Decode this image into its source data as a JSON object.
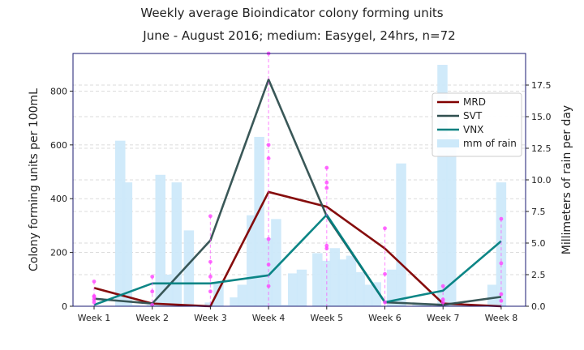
{
  "chart_data": {
    "type": "line",
    "title": "Weekly average Bioindicator colony forming units",
    "subtitle": "June - August 2016; medium: Easygel, 24hrs, n=72",
    "xlabel": "",
    "ylabel": "Colony forming units per 100mL",
    "y2label": "Millimeters of rain per day",
    "categories": [
      "Week 1",
      "Week 2",
      "Week 3",
      "Week 4",
      "Week 5",
      "Week 6",
      "Week 7",
      "Week 8"
    ],
    "ylim": [
      0,
      940
    ],
    "yticks": [
      0,
      200,
      400,
      600,
      800
    ],
    "y2lim": [
      0,
      20
    ],
    "y2ticks": [
      "0.0",
      "2.5",
      "5.0",
      "7.5",
      "10.0",
      "12.5",
      "15.0",
      "17.5"
    ],
    "grid": true,
    "legend_position": "right",
    "series": [
      {
        "name": "MRD",
        "color": "#800000",
        "values": [
          68,
          10,
          0,
          425,
          370,
          215,
          10,
          0
        ]
      },
      {
        "name": "SVT",
        "color": "#2f4f4f",
        "values": [
          28,
          10,
          245,
          843,
          335,
          15,
          5,
          35
        ]
      },
      {
        "name": "VNX",
        "color": "#008080",
        "values": [
          5,
          85,
          85,
          115,
          340,
          15,
          58,
          242
        ]
      }
    ],
    "rain": {
      "name": "mm of rain",
      "color": "#cde9fa",
      "x": [
        1.45,
        1.57,
        1.7,
        1.99,
        2.14,
        2.28,
        2.42,
        2.63,
        2.99,
        3.14,
        3.42,
        3.55,
        3.71,
        3.84,
        3.99,
        4.13,
        4.28,
        4.42,
        4.57,
        4.84,
        4.99,
        5.14,
        5.28,
        5.42,
        5.57,
        5.71,
        5.85,
        6.12,
        6.28,
        6.56,
        6.71,
        6.99,
        7.14,
        7.28,
        7.42,
        7.85,
        8.0
      ],
      "values": [
        13.1,
        9.8,
        0.1,
        0.1,
        10.4,
        2.5,
        9.8,
        6.0,
        0.3,
        1.8,
        0.7,
        1.7,
        7.2,
        13.4,
        5.4,
        6.9,
        0.1,
        2.6,
        2.9,
        4.2,
        3.6,
        4.6,
        3.7,
        4.0,
        2.7,
        1.7,
        1.9,
        2.9,
        11.3,
        0.1,
        0.1,
        19.1,
        13.5,
        0.1,
        0.1,
        1.7,
        9.8
      ]
    },
    "samples": {
      "color": "#ff44ff",
      "groups": [
        {
          "x": 1,
          "values": [
            92,
            38,
            35,
            25,
            15
          ]
        },
        {
          "x": 2,
          "values": [
            110,
            55,
            5
          ]
        },
        {
          "x": 3,
          "values": [
            335,
            165,
            110,
            55
          ]
        },
        {
          "x": 4,
          "values": [
            940,
            600,
            550,
            250,
            155,
            75
          ]
        },
        {
          "x": 5,
          "values": [
            515,
            460,
            440,
            225,
            215
          ]
        },
        {
          "x": 6,
          "values": [
            290,
            120,
            15
          ]
        },
        {
          "x": 7,
          "values": [
            75,
            25,
            15
          ]
        },
        {
          "x": 8,
          "values": [
            325,
            160,
            45,
            20
          ]
        }
      ]
    }
  }
}
